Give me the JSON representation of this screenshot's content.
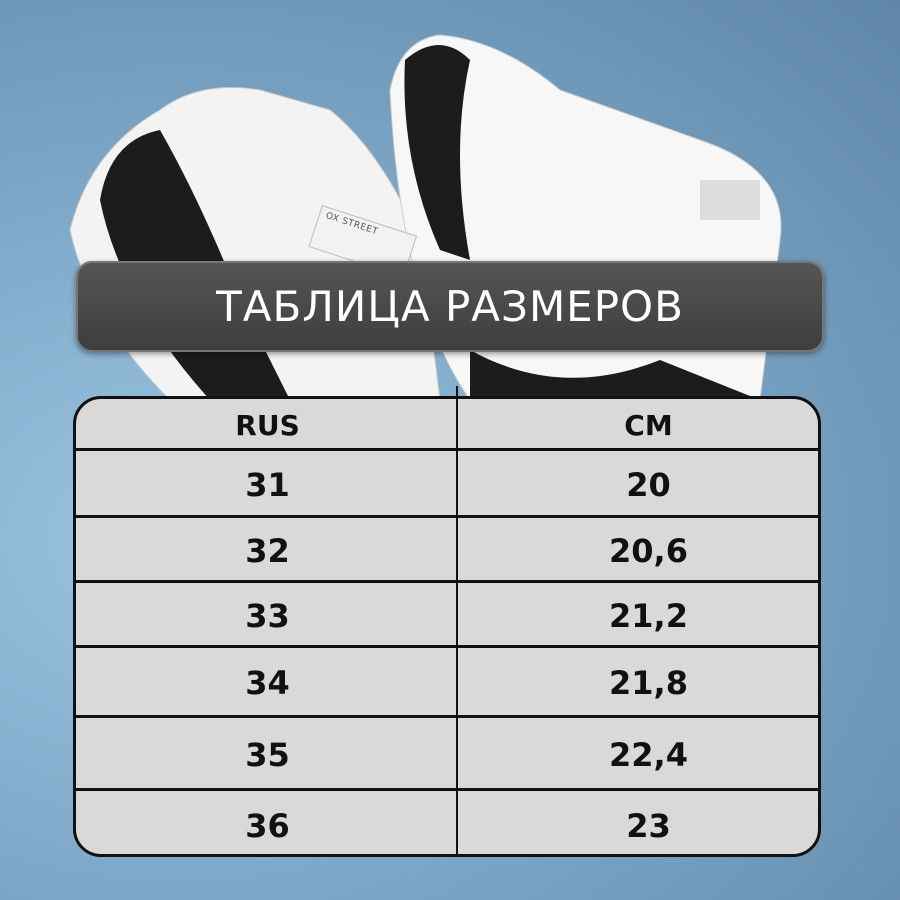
{
  "banner": {
    "title": "ТАБЛИЦА РАЗМЕРОВ"
  },
  "table": {
    "headers": [
      "RUS",
      "CM"
    ],
    "rows": [
      [
        "31",
        "20"
      ],
      [
        "32",
        "20,6"
      ],
      [
        "33",
        "21,2"
      ],
      [
        "34",
        "21,8"
      ],
      [
        "35",
        "22,4"
      ],
      [
        "36",
        "23"
      ]
    ]
  },
  "image": {
    "subject": "sneakers-icon",
    "tag_text": "OX STREET"
  },
  "colors": {
    "banner": "#4a4a4a",
    "table_bg": "#d9d9d9",
    "background": "#86aed0"
  }
}
